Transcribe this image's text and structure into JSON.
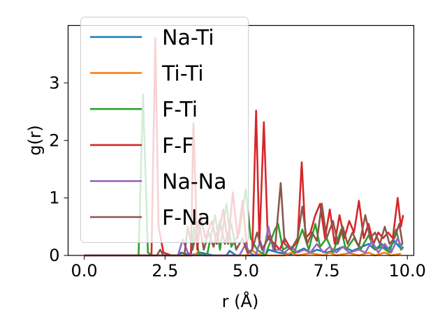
{
  "chart_data": {
    "type": "line",
    "xlabel": "r (Å)",
    "ylabel": "g(r)",
    "xlim": [
      -0.5,
      10.2
    ],
    "ylim": [
      0,
      4.0
    ],
    "xticks": [
      0.0,
      2.5,
      5.0,
      7.5,
      10.0
    ],
    "xtick_labels": [
      "0.0",
      "2.5",
      "5.0",
      "7.5",
      "10.0"
    ],
    "yticks": [
      0,
      1,
      2,
      3
    ],
    "ytick_labels": [
      "0",
      "1",
      "2",
      "3"
    ],
    "grid": false,
    "legend_position": "upper-left",
    "legend_alpha": 0.8,
    "series": [
      {
        "name": "Na-Ti",
        "color": "#1f77b4",
        "points": [
          [
            0.0,
            0
          ],
          [
            2.9,
            0
          ],
          [
            3.0,
            0.05
          ],
          [
            3.3,
            0
          ],
          [
            3.6,
            0.05
          ],
          [
            4.0,
            0
          ],
          [
            4.4,
            0
          ],
          [
            4.5,
            0.08
          ],
          [
            4.7,
            0
          ],
          [
            5.0,
            0
          ],
          [
            5.6,
            0
          ],
          [
            5.7,
            0.1
          ],
          [
            6.0,
            0.05
          ],
          [
            6.4,
            0.02
          ],
          [
            6.8,
            0.12
          ],
          [
            7.0,
            0.05
          ],
          [
            7.2,
            0.1
          ],
          [
            7.5,
            0.05
          ],
          [
            7.8,
            0.1
          ],
          [
            8.0,
            0.15
          ],
          [
            8.3,
            0.08
          ],
          [
            8.6,
            0.15
          ],
          [
            8.8,
            0.2
          ],
          [
            9.0,
            0.1
          ],
          [
            9.2,
            0.2
          ],
          [
            9.4,
            0.1
          ],
          [
            9.6,
            0.25
          ],
          [
            9.75,
            0.15
          ],
          [
            9.85,
            0.2
          ]
        ]
      },
      {
        "name": "Ti-Ti",
        "color": "#ff7f0e",
        "points": [
          [
            0.0,
            0
          ],
          [
            3.4,
            0
          ],
          [
            3.5,
            0.05
          ],
          [
            3.7,
            0
          ],
          [
            5.0,
            0
          ],
          [
            5.2,
            0.08
          ],
          [
            5.4,
            0.02
          ],
          [
            5.7,
            0
          ],
          [
            6.2,
            0
          ],
          [
            6.4,
            0.05
          ],
          [
            6.6,
            0
          ],
          [
            7.0,
            0.04
          ],
          [
            7.4,
            0
          ],
          [
            7.6,
            0.05
          ],
          [
            7.8,
            0
          ],
          [
            8.2,
            0.04
          ],
          [
            8.5,
            0
          ],
          [
            8.8,
            0.05
          ],
          [
            9.0,
            0
          ],
          [
            9.3,
            0.05
          ],
          [
            9.5,
            0
          ],
          [
            9.8,
            0.03
          ]
        ]
      },
      {
        "name": "F-Ti",
        "color": "#2ca02c",
        "points": [
          [
            0.0,
            0
          ],
          [
            1.68,
            0
          ],
          [
            1.82,
            2.8
          ],
          [
            1.97,
            0.05
          ],
          [
            2.1,
            0
          ],
          [
            3.3,
            0
          ],
          [
            3.4,
            0.5
          ],
          [
            3.55,
            0.02
          ],
          [
            3.8,
            0
          ],
          [
            4.05,
            0.7
          ],
          [
            4.2,
            0.1
          ],
          [
            4.4,
            0.9
          ],
          [
            4.55,
            0.15
          ],
          [
            4.8,
            0.4
          ],
          [
            5.0,
            1.15
          ],
          [
            5.15,
            0.3
          ],
          [
            5.35,
            0.1
          ],
          [
            5.6,
            0
          ],
          [
            5.9,
            0.45
          ],
          [
            6.0,
            0.55
          ],
          [
            6.15,
            0.1
          ],
          [
            6.3,
            0.15
          ],
          [
            6.5,
            0.05
          ],
          [
            6.75,
            0.45
          ],
          [
            6.95,
            0.1
          ],
          [
            7.15,
            0.55
          ],
          [
            7.3,
            0.15
          ],
          [
            7.5,
            0.3
          ],
          [
            7.7,
            0.05
          ],
          [
            7.95,
            0.45
          ],
          [
            8.1,
            0.1
          ],
          [
            8.35,
            0.3
          ],
          [
            8.55,
            0.1
          ],
          [
            8.8,
            0.35
          ],
          [
            9.0,
            0.1
          ],
          [
            9.2,
            0.15
          ],
          [
            9.45,
            0.05
          ],
          [
            9.65,
            0.45
          ],
          [
            9.8,
            0.1
          ],
          [
            9.88,
            0.15
          ]
        ]
      },
      {
        "name": "F-F",
        "color": "#d62728",
        "points": [
          [
            0.0,
            0
          ],
          [
            2.08,
            0
          ],
          [
            2.2,
            3.78
          ],
          [
            2.3,
            0.5
          ],
          [
            2.45,
            0.05
          ],
          [
            2.7,
            0
          ],
          [
            3.3,
            0
          ],
          [
            3.38,
            2.3
          ],
          [
            3.5,
            0.1
          ],
          [
            3.6,
            0.7
          ],
          [
            3.75,
            0.3
          ],
          [
            3.95,
            0.6
          ],
          [
            4.1,
            0.2
          ],
          [
            4.3,
            0.8
          ],
          [
            4.45,
            0.2
          ],
          [
            4.6,
            1.1
          ],
          [
            4.75,
            0.3
          ],
          [
            4.9,
            0.95
          ],
          [
            5.05,
            0.05
          ],
          [
            5.2,
            0.1
          ],
          [
            5.32,
            2.52
          ],
          [
            5.42,
            0.2
          ],
          [
            5.56,
            2.32
          ],
          [
            5.68,
            0.3
          ],
          [
            5.9,
            0.2
          ],
          [
            6.05,
            0.1
          ],
          [
            6.2,
            0.3
          ],
          [
            6.4,
            0.1
          ],
          [
            6.6,
            0.25
          ],
          [
            6.73,
            1.62
          ],
          [
            6.85,
            0.3
          ],
          [
            7.0,
            0.4
          ],
          [
            7.15,
            0.7
          ],
          [
            7.3,
            0.9
          ],
          [
            7.45,
            0.3
          ],
          [
            7.6,
            0.8
          ],
          [
            7.75,
            0.2
          ],
          [
            7.9,
            0.7
          ],
          [
            8.05,
            0.3
          ],
          [
            8.2,
            0.6
          ],
          [
            8.35,
            0.4
          ],
          [
            8.5,
            0.95
          ],
          [
            8.65,
            0.3
          ],
          [
            8.8,
            0.55
          ],
          [
            8.95,
            0.2
          ],
          [
            9.1,
            0.4
          ],
          [
            9.25,
            0.3
          ],
          [
            9.4,
            0.4
          ],
          [
            9.55,
            0.3
          ],
          [
            9.7,
            1.0
          ],
          [
            9.8,
            0.5
          ],
          [
            9.87,
            0.7
          ]
        ]
      },
      {
        "name": "Na-Na",
        "color": "#9467bd",
        "points": [
          [
            0.0,
            0
          ],
          [
            2.9,
            0
          ],
          [
            3.05,
            0.28
          ],
          [
            3.2,
            0.05
          ],
          [
            3.35,
            0
          ],
          [
            4.8,
            0
          ],
          [
            5.0,
            0.2
          ],
          [
            5.1,
            0.05
          ],
          [
            5.3,
            0
          ],
          [
            5.45,
            0.25
          ],
          [
            5.55,
            0.05
          ],
          [
            5.7,
            0.5
          ],
          [
            5.85,
            0.1
          ],
          [
            6.05,
            0.1
          ],
          [
            6.2,
            0.05
          ],
          [
            6.4,
            0.15
          ],
          [
            6.6,
            0.05
          ],
          [
            6.8,
            0.1
          ],
          [
            7.0,
            0.05
          ],
          [
            7.2,
            0.2
          ],
          [
            7.4,
            0.05
          ],
          [
            7.6,
            0.15
          ],
          [
            7.8,
            0.05
          ],
          [
            8.0,
            0.15
          ],
          [
            8.2,
            0.05
          ],
          [
            8.5,
            0.1
          ],
          [
            8.7,
            0.05
          ],
          [
            8.9,
            0.25
          ],
          [
            9.1,
            0.05
          ],
          [
            9.3,
            0.2
          ],
          [
            9.5,
            0.05
          ],
          [
            9.7,
            0.3
          ],
          [
            9.85,
            0.1
          ]
        ]
      },
      {
        "name": "F-Na",
        "color": "#8c564b",
        "points": [
          [
            0.0,
            0
          ],
          [
            2.25,
            0
          ],
          [
            2.35,
            0.1
          ],
          [
            2.45,
            0
          ],
          [
            3.1,
            0
          ],
          [
            3.2,
            0.5
          ],
          [
            3.35,
            0.1
          ],
          [
            3.55,
            0.6
          ],
          [
            3.7,
            0.1
          ],
          [
            3.85,
            0.4
          ],
          [
            4.0,
            0.15
          ],
          [
            4.2,
            0.6
          ],
          [
            4.35,
            0.2
          ],
          [
            4.55,
            0.55
          ],
          [
            4.7,
            0.1
          ],
          [
            4.9,
            0.3
          ],
          [
            5.05,
            0.05
          ],
          [
            5.2,
            0.1
          ],
          [
            5.35,
            0.4
          ],
          [
            5.5,
            0.1
          ],
          [
            5.75,
            0.35
          ],
          [
            5.9,
            0.1
          ],
          [
            6.08,
            1.26
          ],
          [
            6.2,
            0.2
          ],
          [
            6.4,
            0.1
          ],
          [
            6.6,
            0.3
          ],
          [
            6.75,
            0.85
          ],
          [
            6.9,
            0.2
          ],
          [
            7.05,
            0.4
          ],
          [
            7.2,
            0.25
          ],
          [
            7.35,
            0.9
          ],
          [
            7.5,
            0.3
          ],
          [
            7.7,
            0.6
          ],
          [
            7.85,
            0.2
          ],
          [
            8.0,
            0.5
          ],
          [
            8.15,
            0.2
          ],
          [
            8.3,
            0.4
          ],
          [
            8.5,
            0.15
          ],
          [
            8.7,
            0.7
          ],
          [
            8.85,
            0.3
          ],
          [
            9.0,
            0.4
          ],
          [
            9.15,
            0.2
          ],
          [
            9.3,
            0.5
          ],
          [
            9.45,
            0.2
          ],
          [
            9.6,
            0.3
          ],
          [
            9.75,
            0.55
          ],
          [
            9.85,
            0.2
          ]
        ]
      }
    ]
  }
}
